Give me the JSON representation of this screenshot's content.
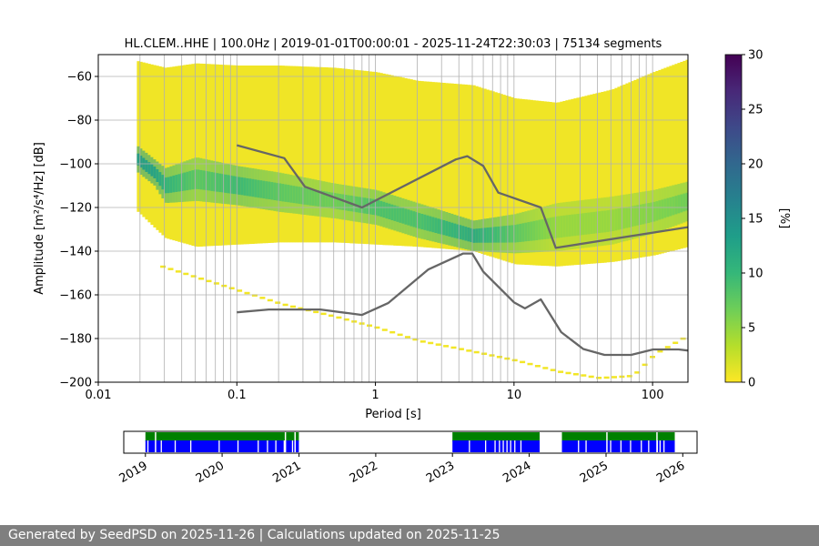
{
  "chart_data": [
    {
      "type": "heatmap",
      "title": "HL.CLEM..HHE | 100.0Hz | 2019-01-01T00:00:01 - 2025-11-24T22:30:03 | 75134 segments",
      "xlabel": "Period [s]",
      "ylabel": "Amplitude [m²/s⁴/Hz] [dB]",
      "x_scale": "log",
      "xlim": [
        0.01,
        180
      ],
      "ylim": [
        -200,
        -50
      ],
      "x_ticks": [
        {
          "value": 0.01,
          "label": "0.01"
        },
        {
          "value": 0.1,
          "label": "0.1"
        },
        {
          "value": 1,
          "label": "1"
        },
        {
          "value": 10,
          "label": "10"
        },
        {
          "value": 100,
          "label": "100"
        }
      ],
      "y_ticks": [
        {
          "value": -60,
          "label": "−60"
        },
        {
          "value": -80,
          "label": "−80"
        },
        {
          "value": -100,
          "label": "−100"
        },
        {
          "value": -120,
          "label": "−120"
        },
        {
          "value": -140,
          "label": "−140"
        },
        {
          "value": -160,
          "label": "−160"
        },
        {
          "value": -180,
          "label": "−180"
        },
        {
          "value": -200,
          "label": "−200"
        }
      ],
      "grid": true,
      "colorbar": {
        "label": "[%]",
        "range": [
          0,
          30
        ],
        "ticks": [
          {
            "value": 0,
            "label": "0"
          },
          {
            "value": 5,
            "label": "5"
          },
          {
            "value": 10,
            "label": "10"
          },
          {
            "value": 15,
            "label": "15"
          },
          {
            "value": 20,
            "label": "20"
          },
          {
            "value": 25,
            "label": "25"
          },
          {
            "value": 30,
            "label": "30"
          }
        ],
        "colors": [
          "#fde725",
          "#b5de2b",
          "#6ece58",
          "#35b779",
          "#1f9e89",
          "#26828e",
          "#31688e",
          "#3e4989",
          "#482878",
          "#440154"
        ]
      },
      "density_envelope": {
        "periods": [
          0.019,
          0.03,
          0.05,
          0.1,
          0.2,
          0.5,
          1,
          2,
          5,
          10,
          20,
          50,
          100,
          180
        ],
        "upper_db": [
          -53,
          -56,
          -54,
          -55,
          -55,
          -56,
          -58,
          -62,
          -64,
          -70,
          -72,
          -66,
          -58,
          -52
        ],
        "lower_db": [
          -122,
          -134,
          -138,
          -137,
          -136,
          -136,
          -137,
          -138,
          -140,
          -146,
          -147,
          -145,
          -142,
          -138
        ]
      },
      "density_peak": {
        "periods": [
          0.019,
          0.025,
          0.03,
          0.05,
          0.1,
          0.2,
          0.5,
          1,
          2,
          5,
          10,
          20,
          50,
          100,
          180
        ],
        "mode_db": [
          -98,
          -104,
          -110,
          -107,
          -110,
          -113,
          -117,
          -120,
          -126,
          -133,
          -132,
          -129,
          -126,
          -122,
          -117
        ],
        "width_db": [
          6,
          6,
          8,
          10,
          9,
          9,
          8,
          8,
          8,
          7,
          9,
          11,
          11,
          10,
          9
        ],
        "peak_percent": [
          14,
          13,
          11,
          8,
          10,
          8,
          7,
          9,
          9,
          12,
          8,
          5,
          5,
          6,
          7
        ]
      },
      "sparse_lower_tail": {
        "periods": [
          0.028,
          0.05,
          0.1,
          0.2,
          0.5,
          1,
          2,
          5,
          10,
          20,
          40,
          70,
          100,
          180
        ],
        "db": [
          -147,
          -152,
          -158,
          -164,
          -170,
          -175,
          -181,
          -186,
          -190,
          -195,
          -198,
          -197,
          -187,
          -178
        ]
      },
      "series": [
        {
          "periods": [
            0.1,
            0.22,
            0.31,
            0.8,
            3.8,
            4.6,
            6,
            7.7,
            15.6,
            20,
            180
          ],
          "db": [
            -91.5,
            -97.4,
            -110.5,
            -120,
            -98,
            -96.5,
            -101,
            -113.2,
            -120,
            -138.5,
            -129
          ]
        },
        {
          "periods": [
            0.1,
            0.17,
            0.4,
            0.8,
            1.24,
            2.4,
            4.3,
            5,
            6,
            10,
            12,
            15.6,
            21.9,
            31.6,
            45,
            70,
            101,
            154,
            180
          ],
          "db": [
            -168,
            -166.7,
            -166.7,
            -169.2,
            -163.7,
            -148.4,
            -141.1,
            -141.1,
            -149.4,
            -163.4,
            -166.2,
            -162.1,
            -177.1,
            -184.8,
            -187.5,
            -187.5,
            -185,
            -185,
            -185.5
          ]
        }
      ],
      "vertical_grid_periods": [
        0.02,
        0.03,
        0.04,
        0.05,
        0.06,
        0.07,
        0.08,
        0.09,
        0.2,
        0.3,
        0.4,
        0.5,
        0.6,
        0.7,
        0.8,
        0.9,
        2,
        3,
        4,
        5,
        6,
        7,
        8,
        9,
        20,
        30,
        40,
        50,
        60,
        70,
        80,
        90
      ]
    },
    {
      "type": "timeline",
      "xlim": [
        "2018-09-20",
        "2026-03-10"
      ],
      "x_ticks": [
        "2019",
        "2020",
        "2021",
        "2022",
        "2023",
        "2024",
        "2025",
        "2026"
      ],
      "available_periods": [
        {
          "start": "2019-01-01",
          "end": "2020-12-31"
        },
        {
          "start": "2023-01-01",
          "end": "2024-02-20"
        },
        {
          "start": "2024-06-05",
          "end": "2025-11-24"
        }
      ],
      "available_color": "#008000",
      "processed_color": "#0000ff",
      "processed_gaps": [
        "2019-01-10",
        "2019-03-15",
        "2019-05-20",
        "2019-08-02",
        "2019-12-15",
        "2020-03-14",
        "2020-06-18",
        "2020-08-01",
        "2020-09-10",
        "2020-10-20",
        "2020-11-28",
        "2023-03-20",
        "2023-06-05",
        "2023-07-20",
        "2023-08-10",
        "2023-08-28",
        "2023-09-15",
        "2023-10-02",
        "2023-10-22",
        "2023-11-20",
        "2024-08-20",
        "2024-09-25",
        "2025-01-20",
        "2025-03-10",
        "2025-04-25",
        "2025-06-15",
        "2025-07-20",
        "2025-08-30",
        "2025-09-12",
        "2025-10-01"
      ],
      "available_gaps": [
        "2019-02-15",
        "2020-10-25",
        "2020-12-10",
        "2025-01-02",
        "2025-08-28"
      ]
    }
  ],
  "footer": {
    "text": "Generated by SeedPSD on 2025-11-26 | Calculations updated on 2025-11-25"
  }
}
